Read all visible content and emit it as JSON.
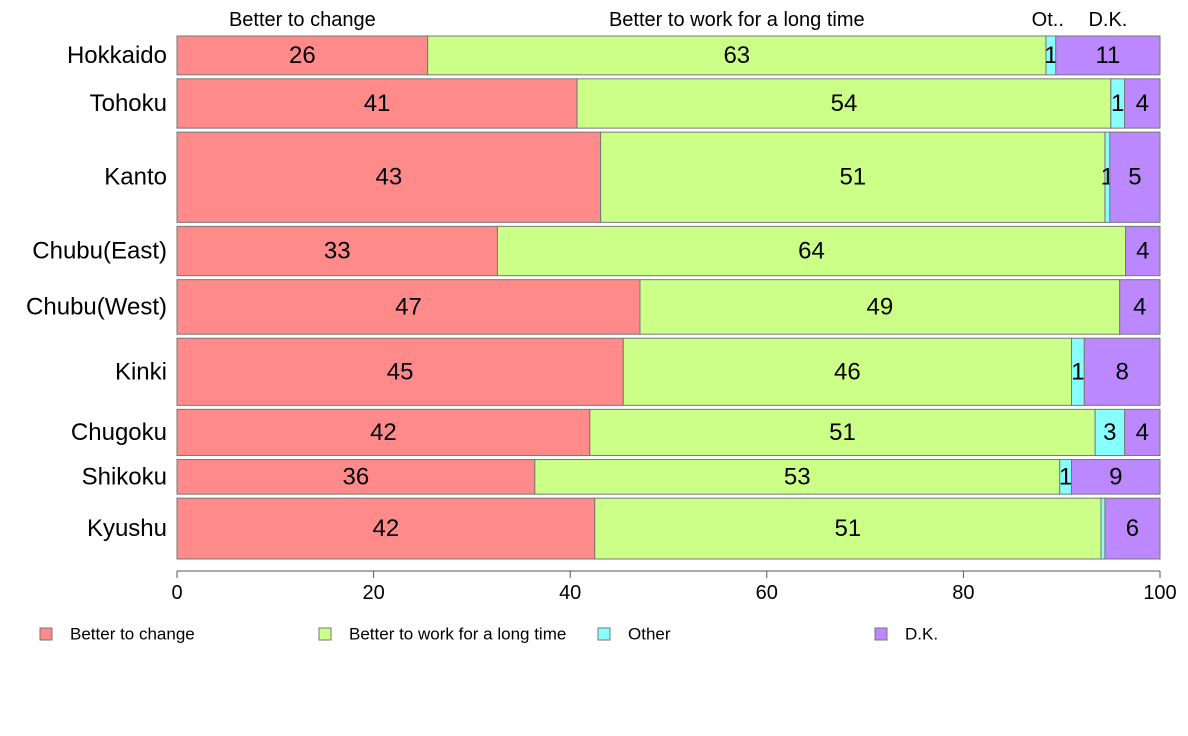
{
  "chart_data": {
    "type": "bar",
    "orientation": "horizontal",
    "stacked": true,
    "categories": [
      "Hokkaido",
      "Tohoku",
      "Kanto",
      "Chubu(East)",
      "Chubu(West)",
      "Kinki",
      "Chugoku",
      "Shikoku",
      "Kyushu"
    ],
    "category_weights": [
      37,
      47,
      86,
      47,
      52,
      64,
      44,
      33,
      58
    ],
    "series": [
      {
        "name": "Better to change",
        "color": "#ff8a8a",
        "values": [
          25.5,
          40.7,
          43.1,
          32.6,
          47.1,
          45.4,
          42.0,
          36.4,
          42.5
        ],
        "labels": [
          "26",
          "41",
          "43",
          "33",
          "47",
          "45",
          "42",
          "36",
          "42"
        ]
      },
      {
        "name": "Better to work for a long time",
        "color": "#ccff88",
        "values": [
          62.9,
          54.3,
          51.3,
          63.9,
          48.8,
          45.6,
          51.4,
          53.4,
          51.5
        ],
        "labels": [
          "63",
          "54",
          "51",
          "64",
          "49",
          "46",
          "51",
          "53",
          "51"
        ]
      },
      {
        "name": "Other",
        "color": "#88ffff",
        "values": [
          1.0,
          1.4,
          0.5,
          0.0,
          0.0,
          1.3,
          3.0,
          1.2,
          0.4
        ],
        "labels": [
          "1",
          "1",
          "1",
          "",
          "",
          "1",
          "3",
          "1",
          ""
        ]
      },
      {
        "name": "D.K.",
        "color": "#bb88ff",
        "values": [
          10.6,
          3.6,
          5.1,
          3.5,
          4.1,
          7.7,
          3.6,
          9.0,
          5.6
        ],
        "labels": [
          "11",
          "4",
          "5",
          "4",
          "4",
          "8",
          "4",
          "9",
          "6"
        ]
      }
    ],
    "column_headers": [
      "Better to change",
      "Better to work for a long time",
      "Ot..",
      "D.K."
    ],
    "xlim": [
      0,
      100
    ],
    "xticks": [
      0,
      20,
      40,
      60,
      80,
      100
    ],
    "grid": false,
    "legend_position": "bottom"
  }
}
